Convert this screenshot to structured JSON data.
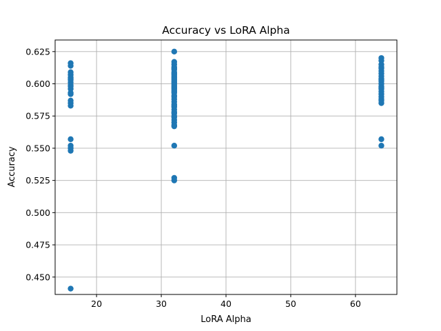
{
  "chart_data": {
    "type": "scatter",
    "title": "Accuracy vs LoRA Alpha",
    "xlabel": "LoRA Alpha",
    "ylabel": "Accuracy",
    "xlim": [
      13.6,
      66.4
    ],
    "ylim": [
      0.4365,
      0.634
    ],
    "xticks": [
      20,
      30,
      40,
      50,
      60
    ],
    "yticks": [
      0.45,
      0.475,
      0.5,
      0.525,
      0.55,
      0.575,
      0.6,
      0.625
    ],
    "ytick_labels": [
      "0.450",
      "0.475",
      "0.500",
      "0.525",
      "0.550",
      "0.575",
      "0.600",
      "0.625"
    ],
    "grid": true,
    "marker_color": "#1f77b4",
    "series": [
      {
        "x": [
          16,
          16,
          16,
          16,
          16,
          16,
          16,
          16,
          16,
          16,
          16,
          16,
          16,
          16,
          16,
          16,
          16,
          16,
          16,
          16,
          16,
          32,
          32,
          32,
          32,
          32,
          32,
          32,
          32,
          32,
          32,
          32,
          32,
          32,
          32,
          32,
          32,
          32,
          32,
          32,
          32,
          32,
          32,
          32,
          32,
          32,
          32,
          32,
          32,
          32,
          32,
          32,
          32,
          32,
          32,
          32,
          32,
          32,
          32,
          32,
          32,
          32,
          32,
          64,
          64,
          64,
          64,
          64,
          64,
          64,
          64,
          64,
          64,
          64,
          64,
          64,
          64,
          64,
          64,
          64,
          64,
          64,
          64,
          64,
          64,
          64
        ],
        "y": [
          0.616,
          0.614,
          0.609,
          0.607,
          0.605,
          0.603,
          0.601,
          0.599,
          0.596,
          0.593,
          0.592,
          0.587,
          0.585,
          0.583,
          0.557,
          0.552,
          0.55,
          0.548,
          0.441,
          0.604,
          0.598,
          0.625,
          0.617,
          0.615,
          0.613,
          0.611,
          0.609,
          0.607,
          0.605,
          0.603,
          0.601,
          0.599,
          0.597,
          0.595,
          0.593,
          0.59,
          0.588,
          0.586,
          0.584,
          0.582,
          0.58,
          0.577,
          0.575,
          0.572,
          0.57,
          0.568,
          0.567,
          0.552,
          0.527,
          0.525,
          0.606,
          0.6,
          0.594,
          0.602,
          0.596,
          0.578,
          0.591,
          0.608,
          0.612,
          0.598,
          0.604,
          0.574,
          0.583,
          0.62,
          0.618,
          0.615,
          0.612,
          0.61,
          0.608,
          0.606,
          0.604,
          0.602,
          0.6,
          0.598,
          0.596,
          0.594,
          0.592,
          0.59,
          0.588,
          0.585,
          0.557,
          0.552,
          0.613,
          0.603,
          0.597,
          0.587
        ]
      }
    ]
  }
}
